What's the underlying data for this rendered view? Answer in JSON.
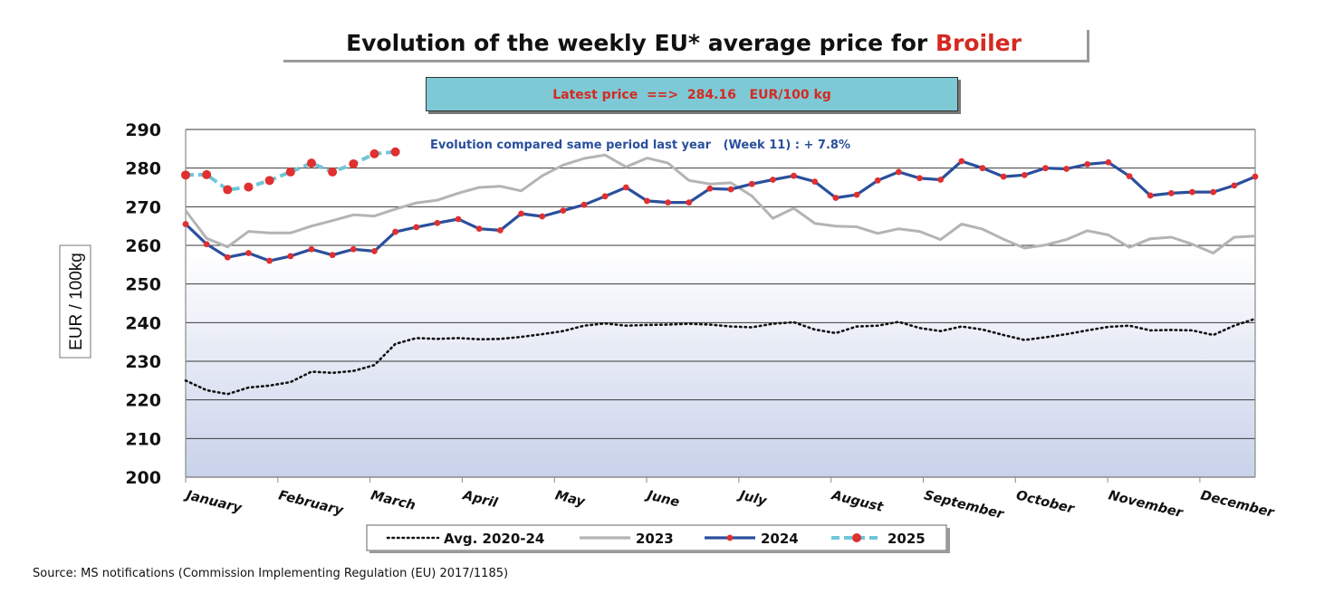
{
  "header": {
    "title_prefix": "Evolution of the weekly EU* average price for ",
    "title_highlight": "Broiler",
    "latest_price": "Latest price  ==>  284.16   EUR/100 kg"
  },
  "chart_data": {
    "type": "line",
    "annotation": "Evolution compared same period last year   (Week 11) : + 7.8%",
    "ylabel": "EUR / 100kg",
    "ylim": [
      200,
      290
    ],
    "yticks": [
      200,
      210,
      220,
      230,
      240,
      250,
      260,
      270,
      280,
      290
    ],
    "xlim": [
      1,
      52
    ],
    "months": [
      "January",
      "February",
      "March",
      "April",
      "May",
      "June",
      "July",
      "August",
      "September",
      "October",
      "November",
      "December"
    ],
    "grid": true,
    "legend_position": "bottom",
    "series": [
      {
        "name": "Avg. 2020-24",
        "style": "dotted",
        "color": "#111111",
        "values": [
          225.0,
          222.5,
          221.5,
          223.2,
          223.7,
          224.6,
          227.3,
          227.0,
          227.5,
          229.0,
          234.5,
          236.0,
          235.8,
          236.0,
          235.7,
          235.8,
          236.3,
          237.0,
          237.8,
          239.2,
          239.8,
          239.2,
          239.4,
          239.5,
          239.7,
          239.5,
          239.0,
          238.8,
          239.7,
          240.1,
          238.2,
          237.3,
          239.0,
          239.2,
          240.2,
          238.6,
          237.8,
          239.0,
          238.2,
          236.8,
          235.5,
          236.2,
          237.0,
          238.0,
          238.9,
          239.2,
          238.0,
          238.1,
          238.0,
          236.8,
          239.2,
          241.0
        ]
      },
      {
        "name": "2023",
        "style": "solid",
        "color": "#b4b4b4",
        "values": [
          269.0,
          261.8,
          259.6,
          263.6,
          263.2,
          263.2,
          265.0,
          266.4,
          267.9,
          267.6,
          269.4,
          271.0,
          271.7,
          273.5,
          275.0,
          275.3,
          274.1,
          278.0,
          280.8,
          282.5,
          283.4,
          280.3,
          282.6,
          281.3,
          276.8,
          275.9,
          276.2,
          272.8,
          267.0,
          269.6,
          265.7,
          265.0,
          264.8,
          263.1,
          264.3,
          263.6,
          261.5,
          265.5,
          264.2,
          261.6,
          259.3,
          260.1,
          261.5,
          263.8,
          262.7,
          259.5,
          261.7,
          262.1,
          260.3,
          258.0,
          262.1,
          262.4
        ]
      },
      {
        "name": "2024",
        "style": "solid-markers",
        "color": "#2a4f9c",
        "marker_color": "#e03030",
        "values": [
          265.5,
          260.3,
          256.9,
          258.0,
          256.0,
          257.2,
          259.0,
          257.5,
          259.0,
          258.5,
          263.5,
          264.7,
          265.8,
          266.8,
          264.3,
          263.9,
          268.2,
          267.5,
          269.0,
          270.5,
          272.7,
          275.0,
          271.5,
          271.1,
          271.1,
          274.7,
          274.5,
          275.9,
          277.0,
          278.0,
          276.5,
          272.3,
          273.1,
          276.8,
          279.0,
          277.4,
          277.0,
          281.8,
          280.0,
          277.8,
          278.2,
          280.0,
          279.8,
          281.0,
          281.5,
          277.9,
          272.9,
          273.5,
          273.8,
          273.8,
          275.5,
          277.8
        ]
      },
      {
        "name": "2025",
        "style": "dashed-markers",
        "color": "#6ec6d8",
        "marker_color": "#e03030",
        "values": [
          278.2,
          278.3,
          274.4,
          275.1,
          276.8,
          279.0,
          281.3,
          279.0,
          281.1,
          283.7,
          284.2
        ]
      }
    ]
  },
  "source": "Source: MS notifications (Commission Implementing Regulation (EU) 2017/1185)"
}
